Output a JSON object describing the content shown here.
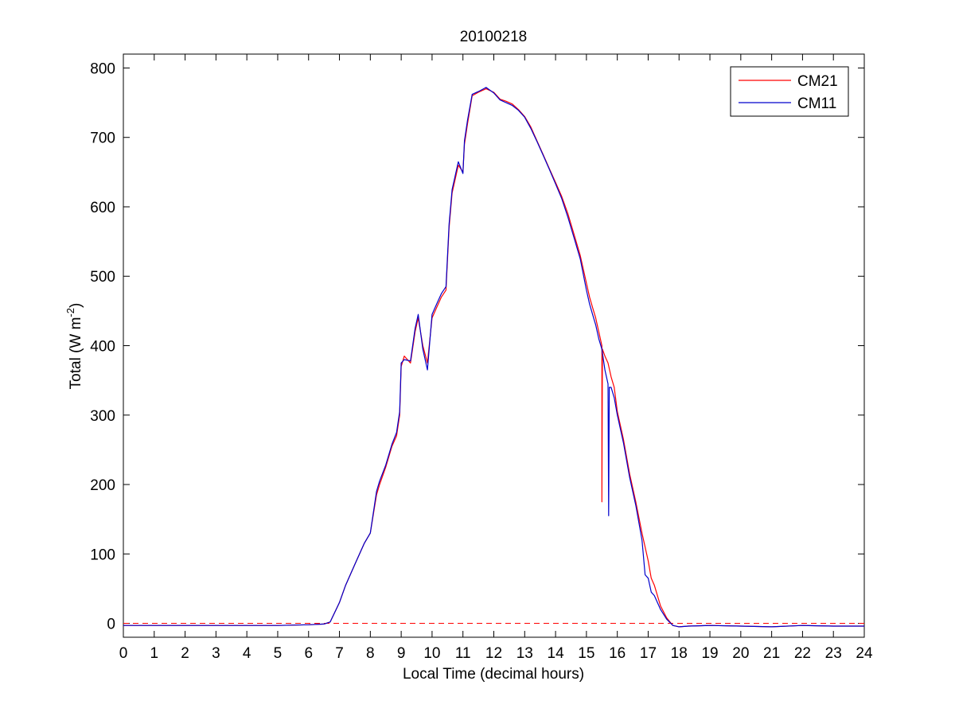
{
  "chart_data": {
    "type": "line",
    "title": "20100218",
    "xlabel": "Local Time (decimal hours)",
    "ylabel": {
      "prefix": "Total (W m",
      "superscript": "-2",
      "suffix": ")"
    },
    "xlim": [
      0,
      24
    ],
    "ylim": [
      -20,
      820
    ],
    "xticks": [
      0,
      1,
      2,
      3,
      4,
      5,
      6,
      7,
      8,
      9,
      10,
      11,
      12,
      13,
      14,
      15,
      16,
      17,
      18,
      19,
      20,
      21,
      22,
      23,
      24
    ],
    "yticks": [
      0,
      100,
      200,
      300,
      400,
      500,
      600,
      700,
      800
    ],
    "grid": false,
    "legend_position": "top-right",
    "reference_line": {
      "y": 0,
      "style": "dashed",
      "color": "#ff0000"
    },
    "series": [
      {
        "name": "CM21",
        "color": "#ff0000",
        "points": [
          [
            0,
            -3
          ],
          [
            1,
            -3
          ],
          [
            2,
            -3
          ],
          [
            3,
            -3
          ],
          [
            4,
            -3
          ],
          [
            5,
            -3
          ],
          [
            6,
            -2
          ],
          [
            6.5,
            -1
          ],
          [
            6.7,
            2
          ],
          [
            7,
            30
          ],
          [
            7.2,
            55
          ],
          [
            7.5,
            85
          ],
          [
            7.8,
            115
          ],
          [
            8,
            130
          ],
          [
            8.2,
            185
          ],
          [
            8.3,
            200
          ],
          [
            8.5,
            225
          ],
          [
            8.7,
            255
          ],
          [
            8.85,
            270
          ],
          [
            8.95,
            300
          ],
          [
            9,
            370
          ],
          [
            9.1,
            385
          ],
          [
            9.3,
            375
          ],
          [
            9.45,
            420
          ],
          [
            9.55,
            440
          ],
          [
            9.7,
            400
          ],
          [
            9.85,
            375
          ],
          [
            10,
            440
          ],
          [
            10.15,
            455
          ],
          [
            10.3,
            470
          ],
          [
            10.45,
            480
          ],
          [
            10.55,
            570
          ],
          [
            10.65,
            620
          ],
          [
            10.75,
            640
          ],
          [
            10.85,
            660
          ],
          [
            11,
            650
          ],
          [
            11.05,
            690
          ],
          [
            11.15,
            720
          ],
          [
            11.3,
            760
          ],
          [
            11.5,
            765
          ],
          [
            11.75,
            770
          ],
          [
            12,
            765
          ],
          [
            12.2,
            755
          ],
          [
            12.4,
            752
          ],
          [
            12.6,
            748
          ],
          [
            12.8,
            740
          ],
          [
            13,
            730
          ],
          [
            13.2,
            715
          ],
          [
            13.4,
            695
          ],
          [
            13.6,
            675
          ],
          [
            13.8,
            655
          ],
          [
            14,
            635
          ],
          [
            14.2,
            615
          ],
          [
            14.4,
            590
          ],
          [
            14.6,
            560
          ],
          [
            14.8,
            530
          ],
          [
            15,
            490
          ],
          [
            15.1,
            470
          ],
          [
            15.2,
            455
          ],
          [
            15.3,
            440
          ],
          [
            15.4,
            420
          ],
          [
            15.5,
            400
          ],
          [
            15.5,
            175
          ],
          [
            15.52,
            395
          ],
          [
            15.6,
            385
          ],
          [
            15.7,
            375
          ],
          [
            15.8,
            355
          ],
          [
            15.9,
            340
          ],
          [
            16,
            305
          ],
          [
            16.2,
            265
          ],
          [
            16.4,
            215
          ],
          [
            16.6,
            175
          ],
          [
            16.8,
            130
          ],
          [
            17,
            90
          ],
          [
            17.1,
            65
          ],
          [
            17.2,
            55
          ],
          [
            17.4,
            25
          ],
          [
            17.6,
            8
          ],
          [
            17.8,
            -3
          ],
          [
            18,
            -5
          ],
          [
            18.3,
            -4
          ],
          [
            19,
            -3
          ],
          [
            20,
            -4
          ],
          [
            21,
            -5
          ],
          [
            22,
            -3
          ],
          [
            23,
            -4
          ],
          [
            24,
            -4
          ]
        ]
      },
      {
        "name": "CM11",
        "color": "#0000cc",
        "points": [
          [
            0,
            -3
          ],
          [
            1,
            -3
          ],
          [
            2,
            -3
          ],
          [
            3,
            -3
          ],
          [
            4,
            -3
          ],
          [
            5,
            -3
          ],
          [
            6,
            -2
          ],
          [
            6.5,
            -1
          ],
          [
            6.7,
            2
          ],
          [
            7,
            30
          ],
          [
            7.2,
            55
          ],
          [
            7.5,
            85
          ],
          [
            7.8,
            115
          ],
          [
            8,
            130
          ],
          [
            8.2,
            190
          ],
          [
            8.3,
            205
          ],
          [
            8.5,
            228
          ],
          [
            8.7,
            258
          ],
          [
            8.85,
            275
          ],
          [
            8.95,
            305
          ],
          [
            9,
            375
          ],
          [
            9.1,
            380
          ],
          [
            9.3,
            378
          ],
          [
            9.45,
            425
          ],
          [
            9.55,
            445
          ],
          [
            9.7,
            395
          ],
          [
            9.85,
            365
          ],
          [
            10,
            445
          ],
          [
            10.15,
            460
          ],
          [
            10.3,
            475
          ],
          [
            10.45,
            485
          ],
          [
            10.55,
            575
          ],
          [
            10.65,
            625
          ],
          [
            10.75,
            645
          ],
          [
            10.85,
            665
          ],
          [
            11,
            648
          ],
          [
            11.05,
            695
          ],
          [
            11.15,
            725
          ],
          [
            11.3,
            762
          ],
          [
            11.5,
            766
          ],
          [
            11.75,
            772
          ],
          [
            12,
            764
          ],
          [
            12.2,
            754
          ],
          [
            12.4,
            750
          ],
          [
            12.6,
            746
          ],
          [
            12.8,
            739
          ],
          [
            13,
            729
          ],
          [
            13.2,
            713
          ],
          [
            13.4,
            694
          ],
          [
            13.6,
            674
          ],
          [
            13.8,
            654
          ],
          [
            14,
            633
          ],
          [
            14.2,
            612
          ],
          [
            14.4,
            585
          ],
          [
            14.6,
            555
          ],
          [
            14.8,
            525
          ],
          [
            15,
            480
          ],
          [
            15.1,
            460
          ],
          [
            15.2,
            445
          ],
          [
            15.3,
            430
          ],
          [
            15.4,
            410
          ],
          [
            15.5,
            395
          ],
          [
            15.6,
            365
          ],
          [
            15.7,
            345
          ],
          [
            15.72,
            155
          ],
          [
            15.74,
            340
          ],
          [
            15.8,
            340
          ],
          [
            15.9,
            325
          ],
          [
            16,
            300
          ],
          [
            16.2,
            260
          ],
          [
            16.4,
            210
          ],
          [
            16.6,
            170
          ],
          [
            16.8,
            120
          ],
          [
            16.9,
            70
          ],
          [
            17,
            65
          ],
          [
            17.1,
            45
          ],
          [
            17.2,
            40
          ],
          [
            17.4,
            20
          ],
          [
            17.6,
            6
          ],
          [
            17.8,
            -3
          ],
          [
            18,
            -5
          ],
          [
            18.3,
            -4
          ],
          [
            19,
            -3
          ],
          [
            20,
            -4
          ],
          [
            21,
            -5
          ],
          [
            22,
            -3
          ],
          [
            23,
            -4
          ],
          [
            24,
            -4
          ]
        ]
      }
    ]
  }
}
